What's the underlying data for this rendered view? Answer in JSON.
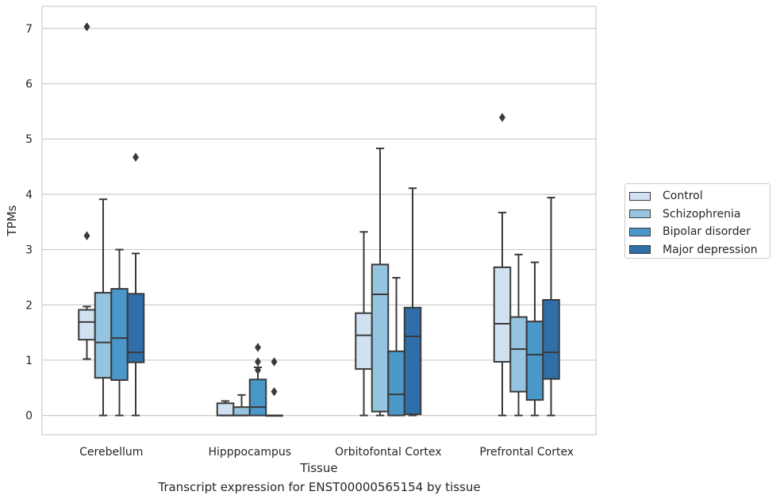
{
  "caption": "Transcript expression for ENST00000565154 by tissue",
  "colors": {
    "Control": "#d0e1f2",
    "Schizophrenia": "#94c4df",
    "Bipolar disorder": "#4a98c9",
    "Major depression": "#2e6fa9",
    "grid": "#cccccc",
    "box_edge": "#3a3a3a"
  },
  "chart_data": {
    "type": "box",
    "xlabel": "Tissue",
    "ylabel": "TPMs",
    "ylim": [
      -0.35,
      7.4
    ],
    "yticks": [
      0,
      1,
      2,
      3,
      4,
      5,
      6,
      7
    ],
    "grid": "horizontal",
    "legend_position": "right",
    "categories": [
      "Cerebellum",
      "Hipppocampus",
      "Orbitofontal Cortex",
      "Prefrontal Cortex"
    ],
    "series": [
      {
        "name": "Control",
        "boxes": [
          {
            "whislo": 1.02,
            "q1": 1.37,
            "med": 1.69,
            "q3": 1.91,
            "whishi": 1.97,
            "fliers": [
              3.25,
              7.03
            ]
          },
          {
            "whislo": 0.0,
            "q1": 0.0,
            "med": 0.0,
            "q3": 0.22,
            "whishi": 0.26,
            "fliers": []
          },
          {
            "whislo": 0.0,
            "q1": 0.84,
            "med": 1.45,
            "q3": 1.85,
            "whishi": 3.32,
            "fliers": []
          },
          {
            "whislo": 0.0,
            "q1": 0.97,
            "med": 1.66,
            "q3": 2.68,
            "whishi": 3.67,
            "fliers": [
              5.39
            ]
          }
        ]
      },
      {
        "name": "Schizophrenia",
        "boxes": [
          {
            "whislo": 0.0,
            "q1": 0.68,
            "med": 1.32,
            "q3": 2.22,
            "whishi": 3.91,
            "fliers": []
          },
          {
            "whislo": 0.0,
            "q1": 0.0,
            "med": 0.0,
            "q3": 0.15,
            "whishi": 0.37,
            "fliers": []
          },
          {
            "whislo": 0.0,
            "q1": 0.07,
            "med": 2.19,
            "q3": 2.73,
            "whishi": 4.83,
            "fliers": []
          },
          {
            "whislo": 0.0,
            "q1": 0.43,
            "med": 1.2,
            "q3": 1.78,
            "whishi": 2.91,
            "fliers": []
          }
        ]
      },
      {
        "name": "Bipolar disorder",
        "boxes": [
          {
            "whislo": 0.0,
            "q1": 0.64,
            "med": 1.4,
            "q3": 2.29,
            "whishi": 3.0,
            "fliers": []
          },
          {
            "whislo": 0.0,
            "q1": 0.0,
            "med": 0.15,
            "q3": 0.65,
            "whishi": 0.87,
            "fliers": [
              1.23,
              0.97,
              0.82
            ]
          },
          {
            "whislo": 0.0,
            "q1": 0.0,
            "med": 0.38,
            "q3": 1.16,
            "whishi": 2.49,
            "fliers": []
          },
          {
            "whislo": 0.0,
            "q1": 0.28,
            "med": 1.1,
            "q3": 1.7,
            "whishi": 2.77,
            "fliers": []
          }
        ]
      },
      {
        "name": "Major depression",
        "boxes": [
          {
            "whislo": 0.0,
            "q1": 0.96,
            "med": 1.14,
            "q3": 2.2,
            "whishi": 2.93,
            "fliers": [
              4.67
            ]
          },
          {
            "whislo": 0.0,
            "q1": 0.0,
            "med": 0.0,
            "q3": 0.0,
            "whishi": 0.0,
            "fliers": [
              0.97,
              0.43
            ]
          },
          {
            "whislo": 0.0,
            "q1": 0.02,
            "med": 1.43,
            "q3": 1.95,
            "whishi": 4.11,
            "fliers": []
          },
          {
            "whislo": 0.0,
            "q1": 0.66,
            "med": 1.14,
            "q3": 2.09,
            "whishi": 3.94,
            "fliers": []
          }
        ]
      }
    ]
  }
}
